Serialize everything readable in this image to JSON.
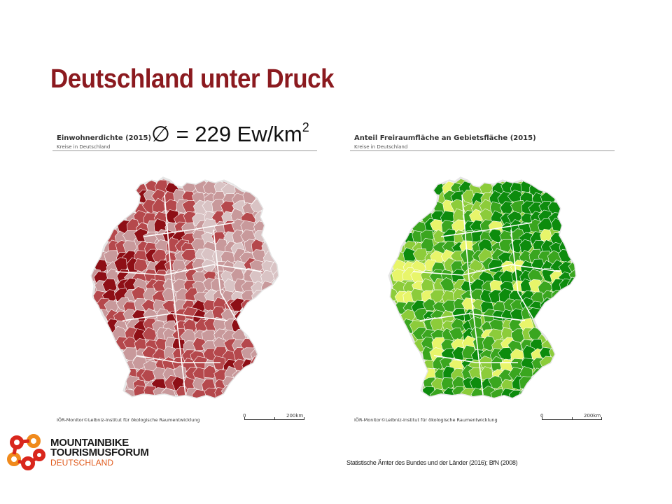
{
  "slide": {
    "title": "Deutschland unter Druck"
  },
  "overlay": {
    "stat_symbol": "∅",
    "stat_text": " = 229 Ew/km",
    "stat_exponent": "2"
  },
  "left_map": {
    "title": "Einwohnerdichte (2015)",
    "subtitle": "Kreise in Deutschland",
    "credit": "IÖR-Monitor©Leibniz-Institut für ökologische Raumentwicklung",
    "scale_start": "0",
    "scale_end": "200km",
    "colors": {
      "dark": "#8e0f16",
      "mid": "#b5484c",
      "light": "#c8999b",
      "pale": "#d9c3c4",
      "border": "#ffffff"
    }
  },
  "right_map": {
    "title": "Anteil Freiraumfläche an Gebietsfläche (2015)",
    "subtitle": "Kreise in Deutschland",
    "credit": "IÖR-Monitor©Leibniz-Institut für ökologische Raumentwicklung",
    "scale_start": "0",
    "scale_end": "200km",
    "colors": {
      "dark": "#0d8c0d",
      "mid": "#3aa61f",
      "light": "#8ccc3a",
      "pale": "#e8f56a",
      "border": "#ffffff"
    }
  },
  "logo": {
    "line1": "MOUNTAINBIKE",
    "line2": "TOURISMUSFORUM",
    "line3": "DEUTSCHLAND",
    "icon": "bike-chain-icon",
    "colors": {
      "red": "#d9261c",
      "orange": "#f08a1c"
    }
  },
  "footer": {
    "source": "Statistische Ämter des Bundes und der Länder (2016); BfN (2008)"
  }
}
